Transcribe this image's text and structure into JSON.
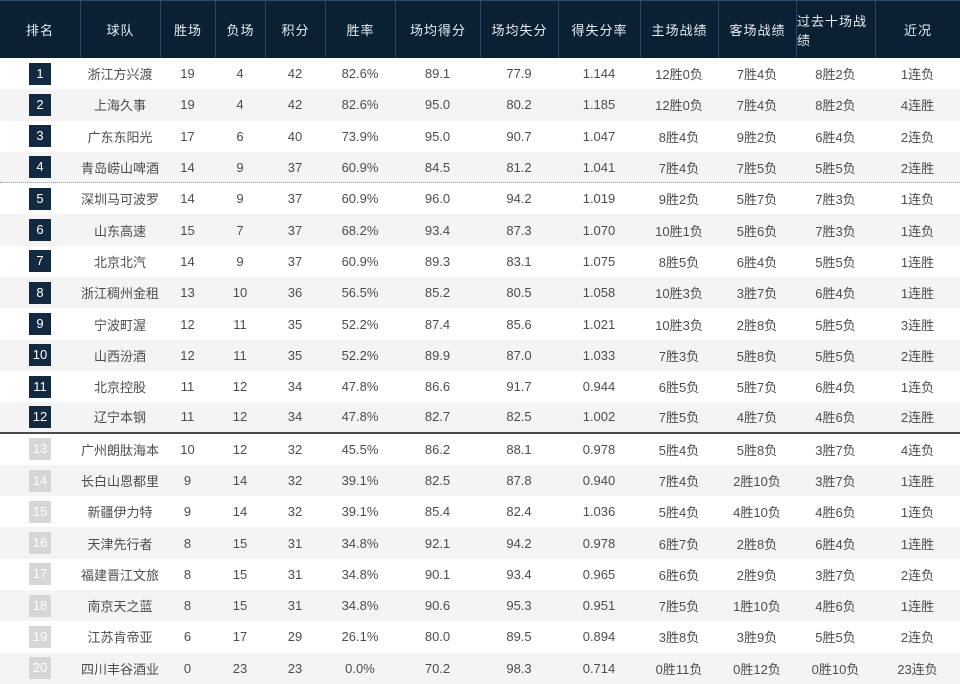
{
  "colors": {
    "header_bg": "#0c2033",
    "header_text": "#e6edf3",
    "header_divider": "#29475f",
    "rank_badge_dark": "#13293f",
    "rank_badge_gray": "#d6d6d6",
    "badge_text": "#ffffff",
    "row_bg_odd": "#ffffff",
    "row_bg_even": "#f4f4f4",
    "body_text": "#4d4d4d",
    "dotted_separator": "#9a9a9a",
    "solid_separator": "#4a4a4a"
  },
  "table": {
    "columns": [
      {
        "key": "rank",
        "label": "排名"
      },
      {
        "key": "team",
        "label": "球队"
      },
      {
        "key": "wins",
        "label": "胜场"
      },
      {
        "key": "losses",
        "label": "负场"
      },
      {
        "key": "points",
        "label": "积分"
      },
      {
        "key": "win_rate",
        "label": "胜率"
      },
      {
        "key": "avg_scored",
        "label": "场均得分"
      },
      {
        "key": "avg_allowed",
        "label": "场均失分"
      },
      {
        "key": "score_ratio",
        "label": "得失分率"
      },
      {
        "key": "home_record",
        "label": "主场战绩"
      },
      {
        "key": "away_record",
        "label": "客场战绩"
      },
      {
        "key": "last10",
        "label": "过去十场战绩"
      },
      {
        "key": "streak",
        "label": "近况"
      }
    ],
    "separators": {
      "dotted_after_rank": 4,
      "solid_after_rank": 12
    },
    "rows": [
      {
        "rank": "1",
        "badge": "dark",
        "team": "浙江方兴渡",
        "wins": "19",
        "losses": "4",
        "points": "42",
        "win_rate": "82.6%",
        "avg_scored": "89.1",
        "avg_allowed": "77.9",
        "score_ratio": "1.144",
        "home_record": "12胜0负",
        "away_record": "7胜4负",
        "last10": "8胜2负",
        "streak": "1连负"
      },
      {
        "rank": "2",
        "badge": "dark",
        "team": "上海久事",
        "wins": "19",
        "losses": "4",
        "points": "42",
        "win_rate": "82.6%",
        "avg_scored": "95.0",
        "avg_allowed": "80.2",
        "score_ratio": "1.185",
        "home_record": "12胜0负",
        "away_record": "7胜4负",
        "last10": "8胜2负",
        "streak": "4连胜"
      },
      {
        "rank": "3",
        "badge": "dark",
        "team": "广东东阳光",
        "wins": "17",
        "losses": "6",
        "points": "40",
        "win_rate": "73.9%",
        "avg_scored": "95.0",
        "avg_allowed": "90.7",
        "score_ratio": "1.047",
        "home_record": "8胜4负",
        "away_record": "9胜2负",
        "last10": "6胜4负",
        "streak": "2连负"
      },
      {
        "rank": "4",
        "badge": "dark",
        "team": "青岛崂山啤酒",
        "wins": "14",
        "losses": "9",
        "points": "37",
        "win_rate": "60.9%",
        "avg_scored": "84.5",
        "avg_allowed": "81.2",
        "score_ratio": "1.041",
        "home_record": "7胜4负",
        "away_record": "7胜5负",
        "last10": "5胜5负",
        "streak": "2连胜"
      },
      {
        "rank": "5",
        "badge": "dark",
        "team": "深圳马可波罗",
        "wins": "14",
        "losses": "9",
        "points": "37",
        "win_rate": "60.9%",
        "avg_scored": "96.0",
        "avg_allowed": "94.2",
        "score_ratio": "1.019",
        "home_record": "9胜2负",
        "away_record": "5胜7负",
        "last10": "7胜3负",
        "streak": "1连负"
      },
      {
        "rank": "6",
        "badge": "dark",
        "team": "山东高速",
        "wins": "15",
        "losses": "7",
        "points": "37",
        "win_rate": "68.2%",
        "avg_scored": "93.4",
        "avg_allowed": "87.3",
        "score_ratio": "1.070",
        "home_record": "10胜1负",
        "away_record": "5胜6负",
        "last10": "7胜3负",
        "streak": "1连负"
      },
      {
        "rank": "7",
        "badge": "dark",
        "team": "北京北汽",
        "wins": "14",
        "losses": "9",
        "points": "37",
        "win_rate": "60.9%",
        "avg_scored": "89.3",
        "avg_allowed": "83.1",
        "score_ratio": "1.075",
        "home_record": "8胜5负",
        "away_record": "6胜4负",
        "last10": "5胜5负",
        "streak": "1连胜"
      },
      {
        "rank": "8",
        "badge": "dark",
        "team": "浙江稠州金租",
        "wins": "13",
        "losses": "10",
        "points": "36",
        "win_rate": "56.5%",
        "avg_scored": "85.2",
        "avg_allowed": "80.5",
        "score_ratio": "1.058",
        "home_record": "10胜3负",
        "away_record": "3胜7负",
        "last10": "6胜4负",
        "streak": "1连胜"
      },
      {
        "rank": "9",
        "badge": "dark",
        "team": "宁波町渥",
        "wins": "12",
        "losses": "11",
        "points": "35",
        "win_rate": "52.2%",
        "avg_scored": "87.4",
        "avg_allowed": "85.6",
        "score_ratio": "1.021",
        "home_record": "10胜3负",
        "away_record": "2胜8负",
        "last10": "5胜5负",
        "streak": "3连胜"
      },
      {
        "rank": "10",
        "badge": "dark",
        "team": "山西汾酒",
        "wins": "12",
        "losses": "11",
        "points": "35",
        "win_rate": "52.2%",
        "avg_scored": "89.9",
        "avg_allowed": "87.0",
        "score_ratio": "1.033",
        "home_record": "7胜3负",
        "away_record": "5胜8负",
        "last10": "5胜5负",
        "streak": "2连胜"
      },
      {
        "rank": "11",
        "badge": "dark",
        "team": "北京控股",
        "wins": "11",
        "losses": "12",
        "points": "34",
        "win_rate": "47.8%",
        "avg_scored": "86.6",
        "avg_allowed": "91.7",
        "score_ratio": "0.944",
        "home_record": "6胜5负",
        "away_record": "5胜7负",
        "last10": "6胜4负",
        "streak": "1连负"
      },
      {
        "rank": "12",
        "badge": "dark",
        "team": "辽宁本钢",
        "wins": "11",
        "losses": "12",
        "points": "34",
        "win_rate": "47.8%",
        "avg_scored": "82.7",
        "avg_allowed": "82.5",
        "score_ratio": "1.002",
        "home_record": "7胜5负",
        "away_record": "4胜7负",
        "last10": "4胜6负",
        "streak": "2连胜"
      },
      {
        "rank": "13",
        "badge": "gray",
        "team": "广州朗肽海本",
        "wins": "10",
        "losses": "12",
        "points": "32",
        "win_rate": "45.5%",
        "avg_scored": "86.2",
        "avg_allowed": "88.1",
        "score_ratio": "0.978",
        "home_record": "5胜4负",
        "away_record": "5胜8负",
        "last10": "3胜7负",
        "streak": "4连负"
      },
      {
        "rank": "14",
        "badge": "gray",
        "team": "长白山恩都里",
        "wins": "9",
        "losses": "14",
        "points": "32",
        "win_rate": "39.1%",
        "avg_scored": "82.5",
        "avg_allowed": "87.8",
        "score_ratio": "0.940",
        "home_record": "7胜4负",
        "away_record": "2胜10负",
        "last10": "3胜7负",
        "streak": "1连胜"
      },
      {
        "rank": "15",
        "badge": "gray",
        "team": "新疆伊力特",
        "wins": "9",
        "losses": "14",
        "points": "32",
        "win_rate": "39.1%",
        "avg_scored": "85.4",
        "avg_allowed": "82.4",
        "score_ratio": "1.036",
        "home_record": "5胜4负",
        "away_record": "4胜10负",
        "last10": "4胜6负",
        "streak": "1连负"
      },
      {
        "rank": "16",
        "badge": "gray",
        "team": "天津先行者",
        "wins": "8",
        "losses": "15",
        "points": "31",
        "win_rate": "34.8%",
        "avg_scored": "92.1",
        "avg_allowed": "94.2",
        "score_ratio": "0.978",
        "home_record": "6胜7负",
        "away_record": "2胜8负",
        "last10": "6胜4负",
        "streak": "1连胜"
      },
      {
        "rank": "17",
        "badge": "gray",
        "team": "福建晋江文旅",
        "wins": "8",
        "losses": "15",
        "points": "31",
        "win_rate": "34.8%",
        "avg_scored": "90.1",
        "avg_allowed": "93.4",
        "score_ratio": "0.965",
        "home_record": "6胜6负",
        "away_record": "2胜9负",
        "last10": "3胜7负",
        "streak": "2连负"
      },
      {
        "rank": "18",
        "badge": "gray",
        "team": "南京天之蓝",
        "wins": "8",
        "losses": "15",
        "points": "31",
        "win_rate": "34.8%",
        "avg_scored": "90.6",
        "avg_allowed": "95.3",
        "score_ratio": "0.951",
        "home_record": "7胜5负",
        "away_record": "1胜10负",
        "last10": "4胜6负",
        "streak": "1连胜"
      },
      {
        "rank": "19",
        "badge": "gray",
        "team": "江苏肯帝亚",
        "wins": "6",
        "losses": "17",
        "points": "29",
        "win_rate": "26.1%",
        "avg_scored": "80.0",
        "avg_allowed": "89.5",
        "score_ratio": "0.894",
        "home_record": "3胜8负",
        "away_record": "3胜9负",
        "last10": "5胜5负",
        "streak": "2连负"
      },
      {
        "rank": "20",
        "badge": "gray",
        "team": "四川丰谷酒业",
        "wins": "0",
        "losses": "23",
        "points": "23",
        "win_rate": "0.0%",
        "avg_scored": "70.2",
        "avg_allowed": "98.3",
        "score_ratio": "0.714",
        "home_record": "0胜11负",
        "away_record": "0胜12负",
        "last10": "0胜10负",
        "streak": "23连负"
      }
    ]
  }
}
